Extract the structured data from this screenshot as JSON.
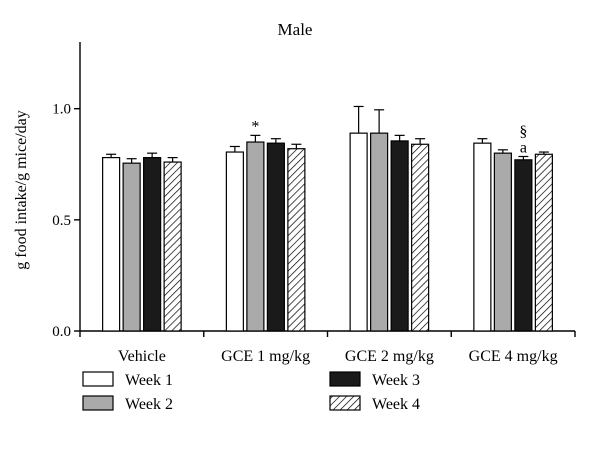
{
  "chart_data": {
    "type": "bar",
    "title": "Male",
    "xlabel": "",
    "ylabel": "g food intake/g mice/day",
    "ylim": [
      0,
      1.3
    ],
    "yticks": [
      "0.0",
      "0.5",
      "1.0"
    ],
    "categories": [
      "Vehicle",
      "GCE 1 mg/kg",
      "GCE 2 mg/kg",
      "GCE 4 mg/kg"
    ],
    "series": [
      {
        "name": "Week 1",
        "fill": "#ffffff",
        "pattern": "none",
        "values": [
          0.78,
          0.805,
          0.89,
          0.845
        ],
        "errors": [
          0.015,
          0.025,
          0.12,
          0.02
        ]
      },
      {
        "name": "Week 2",
        "fill": "#aaaaaa",
        "pattern": "none",
        "values": [
          0.755,
          0.85,
          0.89,
          0.8
        ],
        "errors": [
          0.02,
          0.03,
          0.105,
          0.015
        ]
      },
      {
        "name": "Week 3",
        "fill": "#1a1a1a",
        "pattern": "none",
        "values": [
          0.78,
          0.845,
          0.855,
          0.77
        ],
        "errors": [
          0.02,
          0.02,
          0.025,
          0.015
        ]
      },
      {
        "name": "Week 4",
        "fill": "#ffffff",
        "pattern": "hatch",
        "values": [
          0.76,
          0.82,
          0.84,
          0.795
        ],
        "errors": [
          0.02,
          0.02,
          0.025,
          0.01
        ]
      }
    ],
    "annotations": [
      {
        "category": 1,
        "series": 1,
        "text": "*"
      },
      {
        "category": 3,
        "series": 2,
        "text": "§"
      },
      {
        "category": 3,
        "series": 2,
        "text": "a"
      }
    ],
    "grid": false,
    "legend_position": "bottom"
  }
}
